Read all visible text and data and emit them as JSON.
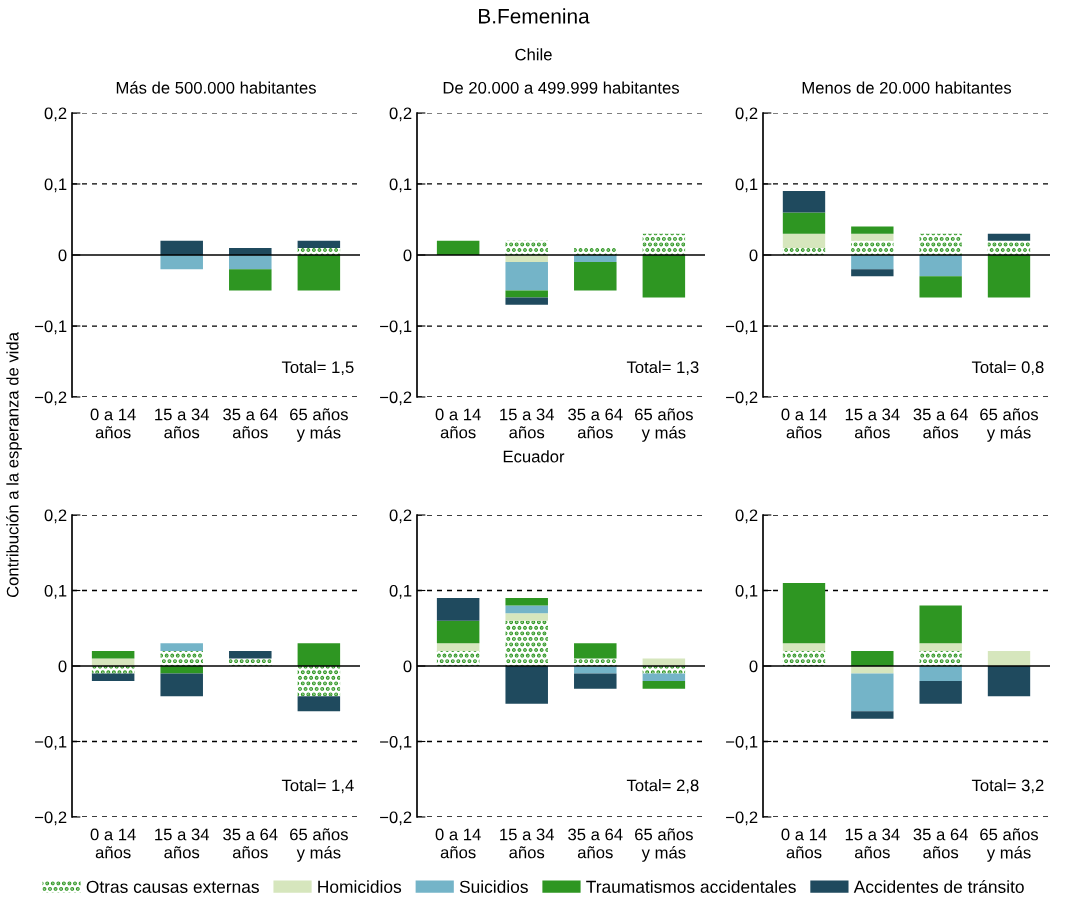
{
  "chart_data": [
    {
      "type": "bar",
      "stacked": true,
      "title": "Más de 500.000 habitantes",
      "ylabel": "Contribución a la esperanza de vida",
      "legend": "bottom",
      "grid": "y",
      "annotations": [
        "B.Femenina",
        "Chile",
        "Total= 1,5"
      ],
      "categories": [
        "0 a 14\naños",
        "15 a 34\naños",
        "35 a 64\naños",
        "65 años\ny más"
      ],
      "ylim": [
        -0.2,
        0.2
      ],
      "yticks": [
        {
          "value": -0.2,
          "label": "−0,2"
        },
        {
          "value": -0.1,
          "label": "−0,1"
        },
        0,
        {
          "value": 0.1,
          "label": "0,1"
        },
        {
          "value": 0.2,
          "label": "0,2"
        }
      ],
      "series": [
        {
          "name": "Otras causas externas",
          "color": "#2e9622",
          "line_style": "dotted",
          "values": [
            null,
            null,
            null,
            0.01
          ]
        },
        {
          "name": "Homicidios",
          "color": "#d6e6bd",
          "values": [
            null,
            null,
            null,
            null
          ]
        },
        {
          "name": "Suicidios",
          "color": "#74b4c8",
          "values": [
            null,
            -0.02,
            -0.02,
            null
          ]
        },
        {
          "name": "Traumatismos accidentales",
          "color": "#2e9622",
          "values": [
            null,
            null,
            -0.03,
            -0.05
          ]
        },
        {
          "name": "Accidentes de tránsito",
          "color": "#1f4a5e",
          "values": [
            null,
            0.02,
            0.01,
            0.01
          ]
        }
      ]
    },
    {
      "type": "bar",
      "stacked": true,
      "title": "De 20.000 a 499.999 habitantes",
      "grid": "y",
      "annotations": [
        "Total= 1,3"
      ],
      "categories": [
        "0 a 14\naños",
        "15 a 34\naños",
        "35 a 64\naños",
        "65 años\ny más"
      ],
      "ylim": [
        -0.2,
        0.2
      ],
      "yticks": [
        {
          "value": -0.2,
          "label": "−0,2"
        },
        {
          "value": -0.1,
          "label": "−0,1"
        },
        0,
        {
          "value": 0.1,
          "label": "0,1"
        },
        {
          "value": 0.2,
          "label": "0,2"
        }
      ],
      "series": [
        {
          "color": "#2e9622",
          "line_style": "dotted",
          "values": [
            null,
            0.02,
            0.01,
            0.03
          ]
        },
        {
          "color": "#d6e6bd",
          "values": [
            null,
            -0.01,
            null,
            null
          ]
        },
        {
          "color": "#74b4c8",
          "values": [
            null,
            -0.04,
            -0.01,
            null
          ]
        },
        {
          "color": "#2e9622",
          "values": [
            0.02,
            -0.01,
            -0.04,
            -0.06
          ]
        },
        {
          "color": "#1f4a5e",
          "values": [
            null,
            -0.01,
            null,
            null
          ]
        }
      ]
    },
    {
      "type": "bar",
      "stacked": true,
      "title": "Menos de 20.000 habitantes",
      "grid": "y",
      "annotations": [
        "Total= 0,8"
      ],
      "categories": [
        "0 a 14\naños",
        "15 a 34\naños",
        "35 a 64\naños",
        "65 años\ny más"
      ],
      "ylim": [
        -0.2,
        0.2
      ],
      "yticks": [
        {
          "value": -0.2,
          "label": "−0,2"
        },
        {
          "value": -0.1,
          "label": "−0,1"
        },
        0,
        {
          "value": 0.1,
          "label": "0,1"
        },
        {
          "value": 0.2,
          "label": "0,2"
        }
      ],
      "series": [
        {
          "color": "#2e9622",
          "line_style": "dotted",
          "values": [
            0.01,
            0.02,
            0.03,
            0.02
          ]
        },
        {
          "color": "#d6e6bd",
          "values": [
            0.02,
            0.01,
            null,
            null
          ]
        },
        {
          "color": "#74b4c8",
          "values": [
            null,
            -0.02,
            -0.03,
            null
          ]
        },
        {
          "color": "#2e9622",
          "values": [
            0.03,
            0.01,
            -0.03,
            -0.06
          ]
        },
        {
          "color": "#1f4a5e",
          "values": [
            0.03,
            -0.01,
            null,
            0.01
          ]
        }
      ]
    },
    {
      "type": "bar",
      "stacked": true,
      "grid": "y",
      "annotations": [
        "Ecuador",
        "Total= 1,4"
      ],
      "categories": [
        "0 a 14\naños",
        "15 a 34\naños",
        "35 a 64\naños",
        "65 años\ny más"
      ],
      "ylim": [
        -0.2,
        0.2
      ],
      "yticks": [
        {
          "value": -0.2,
          "label": "−0,2"
        },
        {
          "value": -0.1,
          "label": "−0,1"
        },
        0,
        {
          "value": 0.1,
          "label": "0,1"
        },
        {
          "value": 0.2,
          "label": "0,2"
        }
      ],
      "series": [
        {
          "color": "#2e9622",
          "line_style": "dotted",
          "values": [
            -0.01,
            0.02,
            0.01,
            -0.04
          ]
        },
        {
          "color": "#d6e6bd",
          "values": [
            0.01,
            null,
            null,
            null
          ]
        },
        {
          "color": "#74b4c8",
          "values": [
            null,
            0.01,
            null,
            null
          ]
        },
        {
          "color": "#2e9622",
          "values": [
            0.01,
            -0.01,
            null,
            0.03
          ]
        },
        {
          "color": "#1f4a5e",
          "values": [
            -0.01,
            -0.03,
            0.01,
            -0.02
          ]
        }
      ]
    },
    {
      "type": "bar",
      "stacked": true,
      "grid": "y",
      "annotations": [
        "Total= 2,8"
      ],
      "categories": [
        "0 a 14\naños",
        "15 a 34\naños",
        "35 a 64\naños",
        "65 años\ny más"
      ],
      "ylim": [
        -0.2,
        0.2
      ],
      "yticks": [
        {
          "value": -0.2,
          "label": "−0,2"
        },
        {
          "value": -0.1,
          "label": "−0,1"
        },
        0,
        {
          "value": 0.1,
          "label": "0,1"
        },
        {
          "value": 0.2,
          "label": "0,2"
        }
      ],
      "series": [
        {
          "color": "#2e9622",
          "line_style": "dotted",
          "values": [
            0.02,
            0.06,
            0.01,
            -0.01
          ]
        },
        {
          "color": "#d6e6bd",
          "values": [
            0.01,
            0.01,
            null,
            0.01
          ]
        },
        {
          "color": "#74b4c8",
          "values": [
            null,
            0.01,
            -0.01,
            -0.01
          ]
        },
        {
          "color": "#2e9622",
          "values": [
            0.03,
            0.01,
            0.02,
            -0.01
          ]
        },
        {
          "color": "#1f4a5e",
          "values": [
            0.03,
            -0.05,
            -0.02,
            null
          ]
        }
      ]
    },
    {
      "type": "bar",
      "stacked": true,
      "grid": "y",
      "annotations": [
        "Total= 3,2"
      ],
      "categories": [
        "0 a 14\naños",
        "15 a 34\naños",
        "35 a 64\naños",
        "65 años\ny más"
      ],
      "ylim": [
        -0.2,
        0.2
      ],
      "yticks": [
        {
          "value": -0.2,
          "label": "−0,2"
        },
        {
          "value": -0.1,
          "label": "−0,1"
        },
        0,
        {
          "value": 0.1,
          "label": "0,1"
        },
        {
          "value": 0.2,
          "label": "0,2"
        }
      ],
      "series": [
        {
          "color": "#2e9622",
          "line_style": "dotted",
          "values": [
            0.02,
            null,
            0.02,
            null
          ]
        },
        {
          "color": "#d6e6bd",
          "values": [
            0.01,
            -0.01,
            0.01,
            0.02
          ]
        },
        {
          "color": "#74b4c8",
          "values": [
            null,
            -0.05,
            -0.02,
            null
          ]
        },
        {
          "color": "#2e9622",
          "values": [
            0.08,
            0.02,
            0.05,
            null
          ]
        },
        {
          "color": "#1f4a5e",
          "values": [
            null,
            -0.01,
            -0.03,
            -0.04
          ]
        }
      ]
    }
  ]
}
